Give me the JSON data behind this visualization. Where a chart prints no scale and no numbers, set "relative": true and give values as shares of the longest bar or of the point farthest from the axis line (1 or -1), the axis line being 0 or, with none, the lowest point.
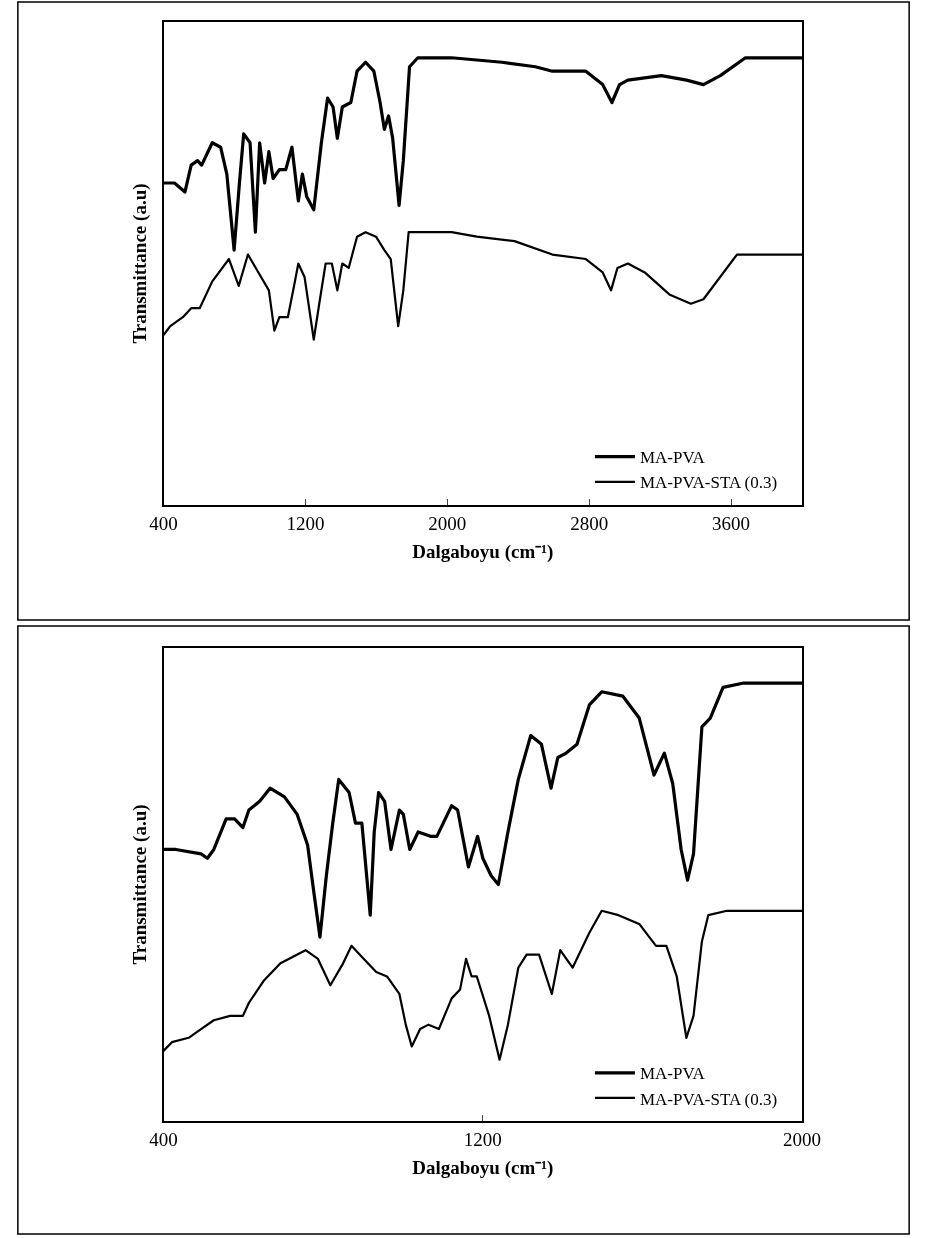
{
  "chart_data": [
    {
      "type": "line",
      "relative": true,
      "ylabel": "Transmittance (a.u)",
      "xlabel": "Dalgaboyu (cm⁻¹)",
      "xlim": [
        400,
        4000
      ],
      "xticks": [
        400,
        1200,
        2000,
        2800,
        3600
      ],
      "legend": "bottom right",
      "marker": "none",
      "line_style": "solid",
      "series": [
        {
          "name": "MA-PVA",
          "color": "#000000",
          "x": [
            400,
            462,
            521,
            556,
            592,
            615,
            675,
            722,
            757,
            798,
            828,
            852,
            888,
            918,
            942,
            970,
            994,
            1018,
            1053,
            1089,
            1124,
            1160,
            1183,
            1207,
            1247,
            1290,
            1325,
            1356,
            1380,
            1408,
            1456,
            1491,
            1539,
            1586,
            1621,
            1645,
            1669,
            1692,
            1728,
            1752,
            1787,
            1834,
            2024,
            2308,
            2497,
            2592,
            2781,
            2876,
            2928,
            2971,
            3018,
            3207,
            3349,
            3444,
            3539,
            3681,
            4000
          ],
          "values": [
            0.72,
            0.72,
            0.7,
            0.76,
            0.77,
            0.76,
            0.81,
            0.8,
            0.74,
            0.57,
            0.72,
            0.83,
            0.81,
            0.61,
            0.81,
            0.72,
            0.79,
            0.73,
            0.75,
            0.75,
            0.8,
            0.68,
            0.74,
            0.69,
            0.66,
            0.81,
            0.91,
            0.89,
            0.82,
            0.89,
            0.9,
            0.97,
            0.99,
            0.97,
            0.9,
            0.84,
            0.87,
            0.82,
            0.67,
            0.77,
            0.98,
            1.0,
            1.0,
            0.99,
            0.98,
            0.97,
            0.97,
            0.94,
            0.9,
            0.94,
            0.95,
            0.96,
            0.95,
            0.94,
            0.96,
            1.0,
            1.0
          ]
        },
        {
          "name": "MA-PVA-STA (0.3)",
          "color": "#000000",
          "x": [
            400,
            438,
            509,
            556,
            604,
            675,
            769,
            824,
            876,
            935,
            994,
            1025,
            1053,
            1101,
            1136,
            1160,
            1195,
            1247,
            1278,
            1314,
            1349,
            1380,
            1408,
            1444,
            1491,
            1539,
            1598,
            1645,
            1681,
            1723,
            1752,
            1782,
            1834,
            2024,
            2166,
            2379,
            2592,
            2781,
            2876,
            2923,
            2959,
            3018,
            3113,
            3255,
            3373,
            3444,
            3633,
            4000
          ],
          "values": [
            0.38,
            0.4,
            0.42,
            0.44,
            0.44,
            0.5,
            0.55,
            0.49,
            0.56,
            0.52,
            0.48,
            0.39,
            0.42,
            0.42,
            0.49,
            0.54,
            0.51,
            0.37,
            0.45,
            0.54,
            0.54,
            0.48,
            0.54,
            0.53,
            0.6,
            0.61,
            0.6,
            0.57,
            0.55,
            0.4,
            0.48,
            0.61,
            0.61,
            0.61,
            0.6,
            0.59,
            0.56,
            0.55,
            0.52,
            0.48,
            0.53,
            0.54,
            0.52,
            0.47,
            0.45,
            0.46,
            0.56,
            0.56
          ]
        }
      ]
    },
    {
      "type": "line",
      "relative": true,
      "ylabel": "Transmittance (a.u)",
      "xlabel": "Dalgaboyu (cm⁻¹)",
      "xlim": [
        400,
        2000
      ],
      "xticks": [
        400,
        1200,
        2000
      ],
      "legend": "bottom right",
      "marker": "none",
      "line_style": "solid",
      "series": [
        {
          "name": "MA-PVA",
          "color": "#000000",
          "x": [
            400,
            431,
            494,
            510,
            526,
            557,
            578,
            599,
            614,
            641,
            667,
            703,
            735,
            761,
            777,
            792,
            808,
            824,
            839,
            865,
            881,
            897,
            918,
            928,
            939,
            954,
            970,
            991,
            1001,
            1017,
            1038,
            1069,
            1085,
            1122,
            1137,
            1164,
            1187,
            1200,
            1221,
            1239,
            1263,
            1289,
            1320,
            1347,
            1371,
            1388,
            1409,
            1436,
            1467,
            1498,
            1551,
            1592,
            1629,
            1655,
            1676,
            1697,
            1713,
            1728,
            1749,
            1770,
            1802,
            1854,
            1906,
            2000
          ],
          "values": [
            0.62,
            0.62,
            0.61,
            0.6,
            0.62,
            0.69,
            0.69,
            0.67,
            0.71,
            0.73,
            0.76,
            0.74,
            0.7,
            0.63,
            0.52,
            0.42,
            0.56,
            0.68,
            0.78,
            0.75,
            0.68,
            0.68,
            0.47,
            0.66,
            0.75,
            0.73,
            0.62,
            0.71,
            0.7,
            0.62,
            0.66,
            0.65,
            0.65,
            0.72,
            0.71,
            0.58,
            0.65,
            0.6,
            0.56,
            0.54,
            0.66,
            0.78,
            0.88,
            0.86,
            0.76,
            0.83,
            0.84,
            0.86,
            0.95,
            0.98,
            0.97,
            0.92,
            0.79,
            0.84,
            0.77,
            0.62,
            0.55,
            0.61,
            0.9,
            0.92,
            0.99,
            1.0,
            1.0,
            1.0
          ]
        },
        {
          "name": "MA-PVA-STA (0.3)",
          "color": "#000000",
          "x": [
            400,
            421,
            463,
            494,
            526,
            567,
            599,
            614,
            651,
            693,
            756,
            787,
            818,
            850,
            871,
            902,
            933,
            960,
            991,
            1007,
            1022,
            1043,
            1064,
            1090,
            1122,
            1143,
            1158,
            1172,
            1185,
            1216,
            1242,
            1263,
            1289,
            1310,
            1341,
            1373,
            1394,
            1425,
            1467,
            1498,
            1540,
            1592,
            1634,
            1660,
            1686,
            1710,
            1728,
            1749,
            1765,
            1812,
            1906,
            2000
          ],
          "values": [
            0.16,
            0.18,
            0.19,
            0.21,
            0.23,
            0.24,
            0.24,
            0.27,
            0.32,
            0.36,
            0.39,
            0.37,
            0.31,
            0.36,
            0.4,
            0.37,
            0.34,
            0.33,
            0.29,
            0.22,
            0.17,
            0.21,
            0.22,
            0.21,
            0.28,
            0.3,
            0.37,
            0.33,
            0.33,
            0.24,
            0.14,
            0.22,
            0.35,
            0.38,
            0.38,
            0.29,
            0.39,
            0.35,
            0.43,
            0.48,
            0.47,
            0.45,
            0.4,
            0.4,
            0.33,
            0.19,
            0.24,
            0.41,
            0.47,
            0.48,
            0.48,
            0.48
          ]
        }
      ]
    }
  ]
}
